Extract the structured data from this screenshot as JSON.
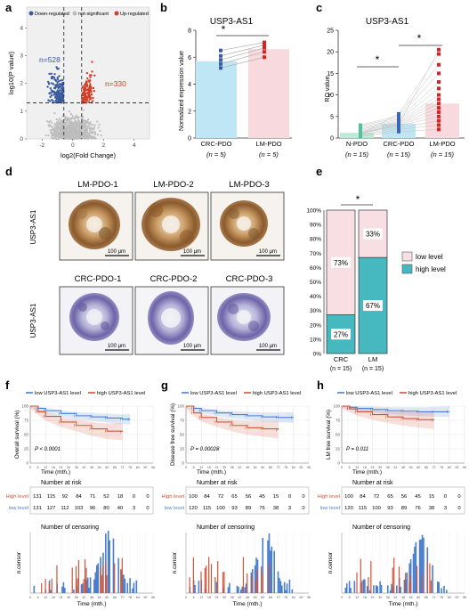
{
  "panel_letters": [
    "a",
    "b",
    "c",
    "d",
    "e",
    "f",
    "g",
    "h"
  ],
  "colors": {
    "down": "#3b5ba0",
    "up": "#d0402a",
    "ns": "#bdbdbd",
    "crc_bar": "#bfe6f5",
    "lm_bar": "#f8d9dd",
    "npdo_bar": "#bfe9d9",
    "low": "#4a7fd0",
    "high": "#d0553a",
    "teal": "#45b8c0",
    "pink": "#f7dfe3"
  },
  "volcano": {
    "legend": [
      "Down-regulated",
      "not-significant",
      "Up-regulated"
    ],
    "xlabel": "log2(Fold Change)",
    "ylabel": "log10(P value)",
    "xticks": [
      "-2",
      "0",
      "2",
      "4"
    ],
    "yticks": [
      "0",
      "1",
      "2",
      "3",
      "4"
    ],
    "n_down": "n=528",
    "n_up": "n=330",
    "chart_data": {
      "type": "scatter",
      "xlim": [
        -3,
        5
      ],
      "ylim": [
        0,
        4.3
      ],
      "thresholds": {
        "x": [
          -0.58,
          0.58
        ],
        "y": 1.3
      },
      "counts": {
        "down": 528,
        "up": 330
      }
    }
  },
  "panel_b": {
    "title": "USP3-AS1",
    "ylabel": "Normalized expression value",
    "yticks": [
      "0",
      "2",
      "4",
      "6",
      "8"
    ],
    "categories": [
      "CRC-PDO",
      "LM-PDO"
    ],
    "n_labels": [
      "(n = 5)",
      "(n = 5)"
    ],
    "sig": "*",
    "chart_data": {
      "type": "bar",
      "categories": [
        "CRC-PDO",
        "LM-PDO"
      ],
      "values": [
        5.7,
        6.6
      ],
      "ylim": [
        0,
        8
      ],
      "pairs": [
        [
          5.2,
          6.0
        ],
        [
          5.5,
          6.4
        ],
        [
          5.8,
          6.7
        ],
        [
          6.1,
          6.9
        ],
        [
          6.5,
          7.1
        ]
      ]
    }
  },
  "panel_c": {
    "title": "USP3-AS1",
    "ylabel": "RQ value",
    "yticks": [
      "0",
      "5",
      "10",
      "15",
      "20",
      "25"
    ],
    "categories": [
      "N-PDO",
      "CRC-PDO",
      "LM-PDO"
    ],
    "n_labels": [
      "(n = 15)",
      "(n = 15)",
      "(n = 15)"
    ],
    "sig": [
      "*",
      "*"
    ],
    "chart_data": {
      "type": "bar",
      "categories": [
        "N-PDO",
        "CRC-PDO",
        "LM-PDO"
      ],
      "values": [
        1.2,
        3.3,
        8.0
      ],
      "ylim": [
        0,
        25
      ],
      "points": [
        [
          0.4,
          0.6,
          0.8,
          1.0,
          1.1,
          1.3,
          1.5,
          1.7,
          2.0,
          2.2,
          2.5,
          2.8,
          3.0,
          0.9,
          1.2
        ],
        [
          1.5,
          2.0,
          2.4,
          2.8,
          3.0,
          3.2,
          3.4,
          3.6,
          3.8,
          4.1,
          4.4,
          4.8,
          5.2,
          5.6,
          3.0
        ],
        [
          2.0,
          3.0,
          4.0,
          5.0,
          6.0,
          7.0,
          8.0,
          9.0,
          10.0,
          11.5,
          13.0,
          15.0,
          17.0,
          19.5,
          20.5
        ]
      ]
    }
  },
  "panel_d": {
    "top_labels": [
      "LM-PDO-1",
      "LM-PDO-2",
      "LM-PDO-3"
    ],
    "bottom_labels": [
      "CRC-PDO-1",
      "CRC-PDO-2",
      "CRC-PDO-3"
    ],
    "row_label": "USP3-AS1",
    "scale": "100 μm"
  },
  "panel_e": {
    "yticks": [
      "0%",
      "10%",
      "20%",
      "30%",
      "40%",
      "50%",
      "60%",
      "70%",
      "80%",
      "90%",
      "100%"
    ],
    "categories": [
      "CRC",
      "LM"
    ],
    "n_labels": [
      "(n = 15)",
      "(n = 15)"
    ],
    "legend": [
      "low level",
      "high level"
    ],
    "sig": "*",
    "chart_data": {
      "type": "bar",
      "stacked": true,
      "categories": [
        "CRC",
        "LM"
      ],
      "series": [
        {
          "name": "high level",
          "values": [
            27,
            67
          ],
          "labels": [
            "27%",
            "67%"
          ]
        },
        {
          "name": "low level",
          "values": [
            73,
            33
          ],
          "labels": [
            "73%",
            "33%"
          ]
        }
      ],
      "ylim": [
        0,
        100
      ]
    }
  },
  "km": [
    {
      "letter": "f",
      "legend": [
        "low USP3-AS1 level",
        "high USP3-AS1 level"
      ],
      "ylabel": "Overall survival (%)",
      "xlabel": "Time (mth.)",
      "pvalue": "P < 0.0001",
      "risk_title": "Number at risk",
      "risk_rows": [
        {
          "label": "High level",
          "values": [
            "131",
            "115",
            "92",
            "84",
            "71",
            "52",
            "18",
            "0",
            "0"
          ]
        },
        {
          "label": "low level",
          "values": [
            "131",
            "127",
            "112",
            "103",
            "96",
            "80",
            "40",
            "3",
            "0"
          ]
        }
      ],
      "censor_title": "Number of censoring",
      "censor_ylabel": "n.censor",
      "censor_xlabel": "Time (mth.)",
      "chart_data": {
        "type": "line",
        "x": [
          0,
          12,
          24,
          36,
          48,
          60,
          72
        ],
        "xticks": [
          "0",
          "6",
          "12",
          "18",
          "24",
          "30",
          "36",
          "42",
          "48",
          "54",
          "60",
          "66",
          "72",
          "78",
          "84",
          "90",
          "96"
        ],
        "yticks": [
          "0",
          "25",
          "50",
          "75",
          "100"
        ],
        "xlim": [
          0,
          96
        ],
        "ylim": [
          0,
          100
        ],
        "series": [
          {
            "name": "low USP3-AS1 level",
            "x": [
              0,
              6,
              12,
              24,
              36,
              48,
              60,
              72,
              78
            ],
            "values": [
              100,
              96,
              92,
              87,
              83,
              81,
              79,
              77,
              77
            ]
          },
          {
            "name": "high USP3-AS1 level",
            "x": [
              0,
              6,
              12,
              24,
              36,
              48,
              60,
              72
            ],
            "values": [
              100,
              90,
              82,
              72,
              66,
              60,
              56,
              55
            ]
          }
        ]
      }
    },
    {
      "letter": "g",
      "legend": [
        "low USP3-AS1 level",
        "high USP3-AS1 level"
      ],
      "ylabel": "Disease free survival (%)",
      "xlabel": "Time (mth.)",
      "pvalue": "P = 0.00028",
      "risk_title": "Number at risk",
      "risk_rows": [
        {
          "label": "High level",
          "values": [
            "100",
            "84",
            "72",
            "65",
            "56",
            "45",
            "15",
            "0",
            "0"
          ]
        },
        {
          "label": "low level",
          "values": [
            "120",
            "115",
            "100",
            "93",
            "89",
            "76",
            "38",
            "3",
            "0"
          ]
        }
      ],
      "censor_title": "Number of censoring",
      "censor_ylabel": "n.censor",
      "censor_xlabel": "Time (mth.)",
      "chart_data": {
        "type": "line",
        "xticks": [
          "0",
          "6",
          "12",
          "18",
          "24",
          "30",
          "36",
          "42",
          "48",
          "54",
          "60",
          "66",
          "72",
          "78",
          "84",
          "90",
          "96"
        ],
        "yticks": [
          "0",
          "25",
          "50",
          "75",
          "100"
        ],
        "xlim": [
          0,
          96
        ],
        "ylim": [
          0,
          100
        ],
        "series": [
          {
            "name": "low USP3-AS1 level",
            "x": [
              0,
              6,
              12,
              24,
              36,
              48,
              60,
              72,
              84
            ],
            "values": [
              100,
              96,
              92,
              88,
              85,
              83,
              81,
              80,
              80
            ]
          },
          {
            "name": "high USP3-AS1 level",
            "x": [
              0,
              6,
              12,
              24,
              36,
              48,
              60,
              72
            ],
            "values": [
              100,
              88,
              80,
              72,
              66,
              62,
              60,
              58
            ]
          }
        ]
      }
    },
    {
      "letter": "h",
      "legend": [
        "low USP3-AS1 level",
        "high USP3-AS1 level"
      ],
      "ylabel": "LM free survival (%)",
      "xlabel": "Time (mth.)",
      "pvalue": "P = 0.011",
      "risk_title": "Number at risk",
      "risk_rows": [
        {
          "label": "High level",
          "values": [
            "100",
            "84",
            "72",
            "65",
            "56",
            "45",
            "15",
            "0",
            "0"
          ]
        },
        {
          "label": "low level",
          "values": [
            "120",
            "115",
            "100",
            "93",
            "89",
            "76",
            "38",
            "3",
            "0"
          ]
        }
      ],
      "censor_title": "Number of censoring",
      "censor_ylabel": "n.censor",
      "censor_xlabel": "Time (mth.)",
      "chart_data": {
        "type": "line",
        "xticks": [
          "0",
          "6",
          "12",
          "18",
          "24",
          "30",
          "36",
          "42",
          "48",
          "54",
          "60",
          "66",
          "72",
          "78",
          "84",
          "90",
          "96"
        ],
        "yticks": [
          "0",
          "25",
          "50",
          "75",
          "100"
        ],
        "xlim": [
          0,
          96
        ],
        "ylim": [
          0,
          100
        ],
        "series": [
          {
            "name": "low USP3-AS1 level",
            "x": [
              0,
              6,
              12,
              24,
              36,
              48,
              60,
              72,
              84
            ],
            "values": [
              100,
              98,
              96,
              94,
              92,
              91,
              90,
              90,
              90
            ]
          },
          {
            "name": "high USP3-AS1 level",
            "x": [
              0,
              6,
              12,
              24,
              36,
              48,
              60,
              72
            ],
            "values": [
              100,
              95,
              90,
              85,
              81,
              78,
              76,
              75
            ]
          }
        ]
      }
    }
  ]
}
